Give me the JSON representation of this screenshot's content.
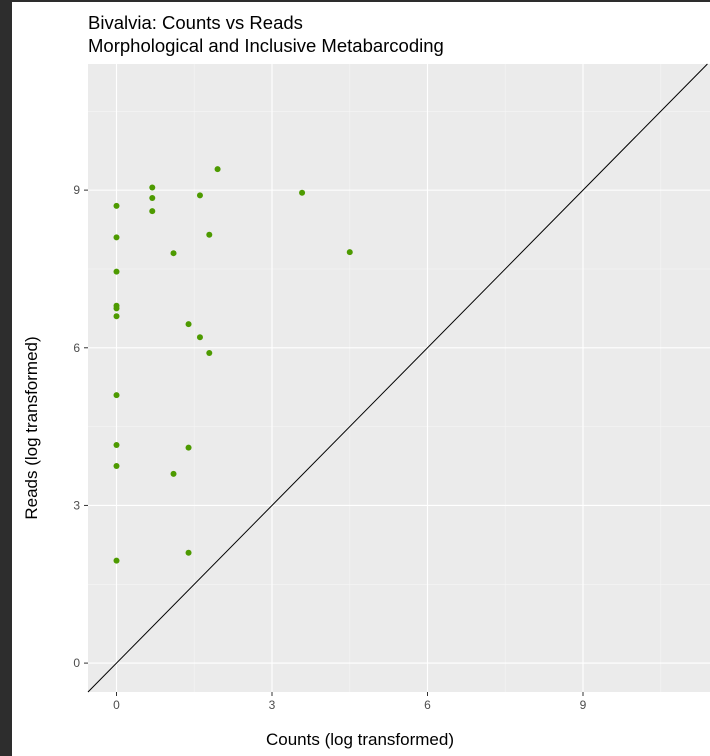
{
  "chart_data": {
    "type": "scatter",
    "title": "Bivalvia: Counts vs Reads",
    "subtitle": "Morphological and Inclusive Metabarcoding",
    "xlabel": "Counts (log transformed)",
    "ylabel": "Reads (log transformed)",
    "xlim": [
      -0.55,
      11.45
    ],
    "ylim": [
      -0.55,
      11.4
    ],
    "x_ticks": [
      0,
      3,
      6,
      9
    ],
    "y_ticks": [
      0,
      3,
      6,
      9
    ],
    "x_tick_labels": [
      "0",
      "3",
      "6",
      "9"
    ],
    "y_tick_labels": [
      "0",
      "3",
      "6",
      "9"
    ],
    "grid": true,
    "reference_line": {
      "type": "identity",
      "slope": 1,
      "intercept": 0,
      "color": "#000000"
    },
    "point_color": "#4d9a00",
    "panel_background": "#ebebeb",
    "points": [
      {
        "x": 0,
        "y": 8.7
      },
      {
        "x": 0,
        "y": 8.1
      },
      {
        "x": 0,
        "y": 7.45
      },
      {
        "x": 0,
        "y": 6.8
      },
      {
        "x": 0,
        "y": 6.75
      },
      {
        "x": 0,
        "y": 6.6
      },
      {
        "x": 0,
        "y": 5.1
      },
      {
        "x": 0,
        "y": 4.15
      },
      {
        "x": 0,
        "y": 3.75
      },
      {
        "x": 0,
        "y": 1.95
      },
      {
        "x": 0.69,
        "y": 9.05
      },
      {
        "x": 0.69,
        "y": 8.85
      },
      {
        "x": 0.69,
        "y": 8.6
      },
      {
        "x": 1.1,
        "y": 7.8
      },
      {
        "x": 1.1,
        "y": 3.6
      },
      {
        "x": 1.39,
        "y": 6.45
      },
      {
        "x": 1.39,
        "y": 4.1
      },
      {
        "x": 1.39,
        "y": 2.1
      },
      {
        "x": 1.61,
        "y": 8.9
      },
      {
        "x": 1.61,
        "y": 6.2
      },
      {
        "x": 1.79,
        "y": 8.15
      },
      {
        "x": 1.79,
        "y": 5.9
      },
      {
        "x": 1.95,
        "y": 9.4
      },
      {
        "x": 3.58,
        "y": 8.95
      },
      {
        "x": 4.5,
        "y": 7.82
      }
    ]
  }
}
